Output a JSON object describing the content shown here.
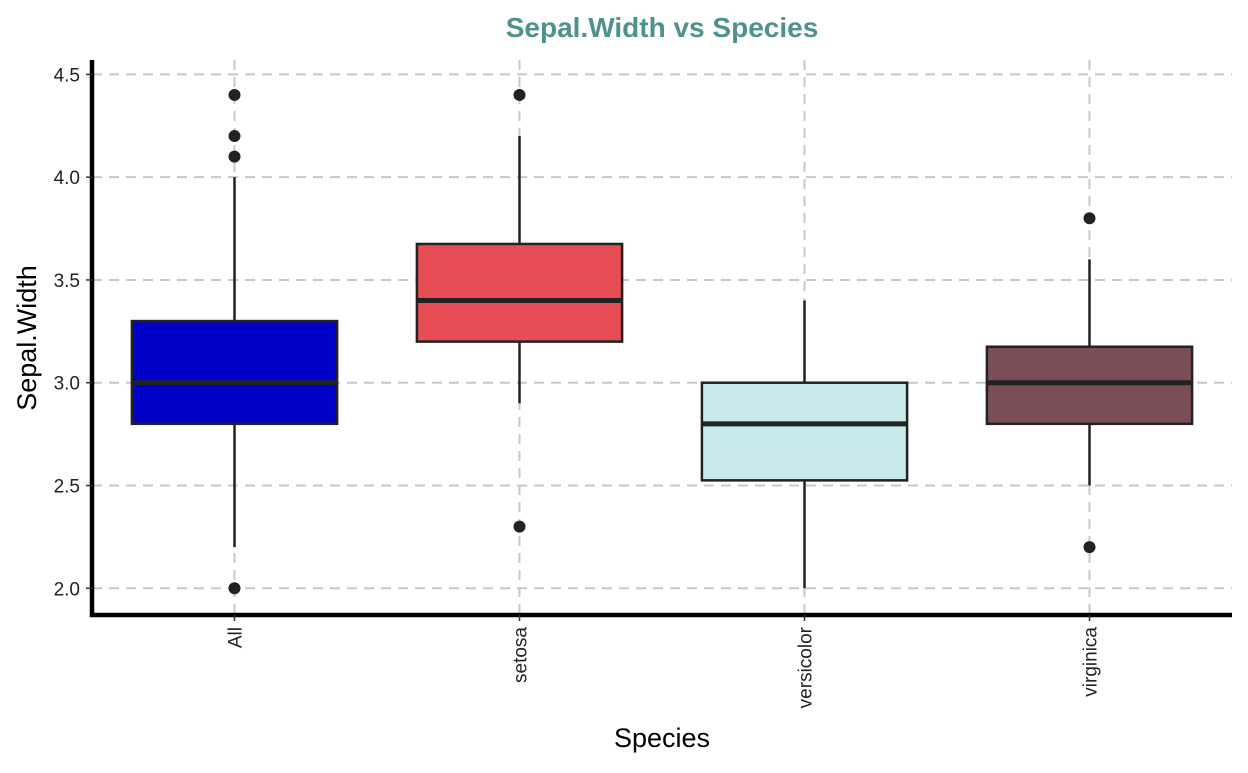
{
  "chart_data": {
    "type": "boxplot",
    "title": "Sepal.Width vs Species",
    "xlabel": "Species",
    "ylabel": "Sepal.Width",
    "ylim": [
      1.87,
      4.57
    ],
    "yticks": [
      "2.0",
      "2.5",
      "3.0",
      "3.5",
      "4.0",
      "4.5"
    ],
    "grid": true,
    "grid_style": "dashed",
    "x_tick_rotation": "vertical",
    "title_color": "#4f9191",
    "categories": [
      "All",
      "setosa",
      "versicolor",
      "virginica"
    ],
    "boxes": [
      {
        "category": "All",
        "color": "#0000c8",
        "whisker_low": 2.2,
        "q1": 2.8,
        "median": 3.0,
        "q3": 3.3,
        "whisker_high": 4.0,
        "outliers": [
          2.0,
          4.1,
          4.2,
          4.4
        ]
      },
      {
        "category": "setosa",
        "color": "#e84c54",
        "whisker_low": 2.9,
        "q1": 3.2,
        "median": 3.4,
        "q3": 3.675,
        "whisker_high": 4.2,
        "outliers": [
          2.3,
          4.4
        ]
      },
      {
        "category": "versicolor",
        "color": "#c8eaea",
        "whisker_low": 2.0,
        "q1": 2.525,
        "median": 2.8,
        "q3": 3.0,
        "whisker_high": 3.4,
        "outliers": []
      },
      {
        "category": "virginica",
        "color": "#7a4e54",
        "whisker_low": 2.5,
        "q1": 2.8,
        "median": 3.0,
        "q3": 3.175,
        "whisker_high": 3.6,
        "outliers": [
          2.2,
          3.8
        ]
      }
    ]
  }
}
